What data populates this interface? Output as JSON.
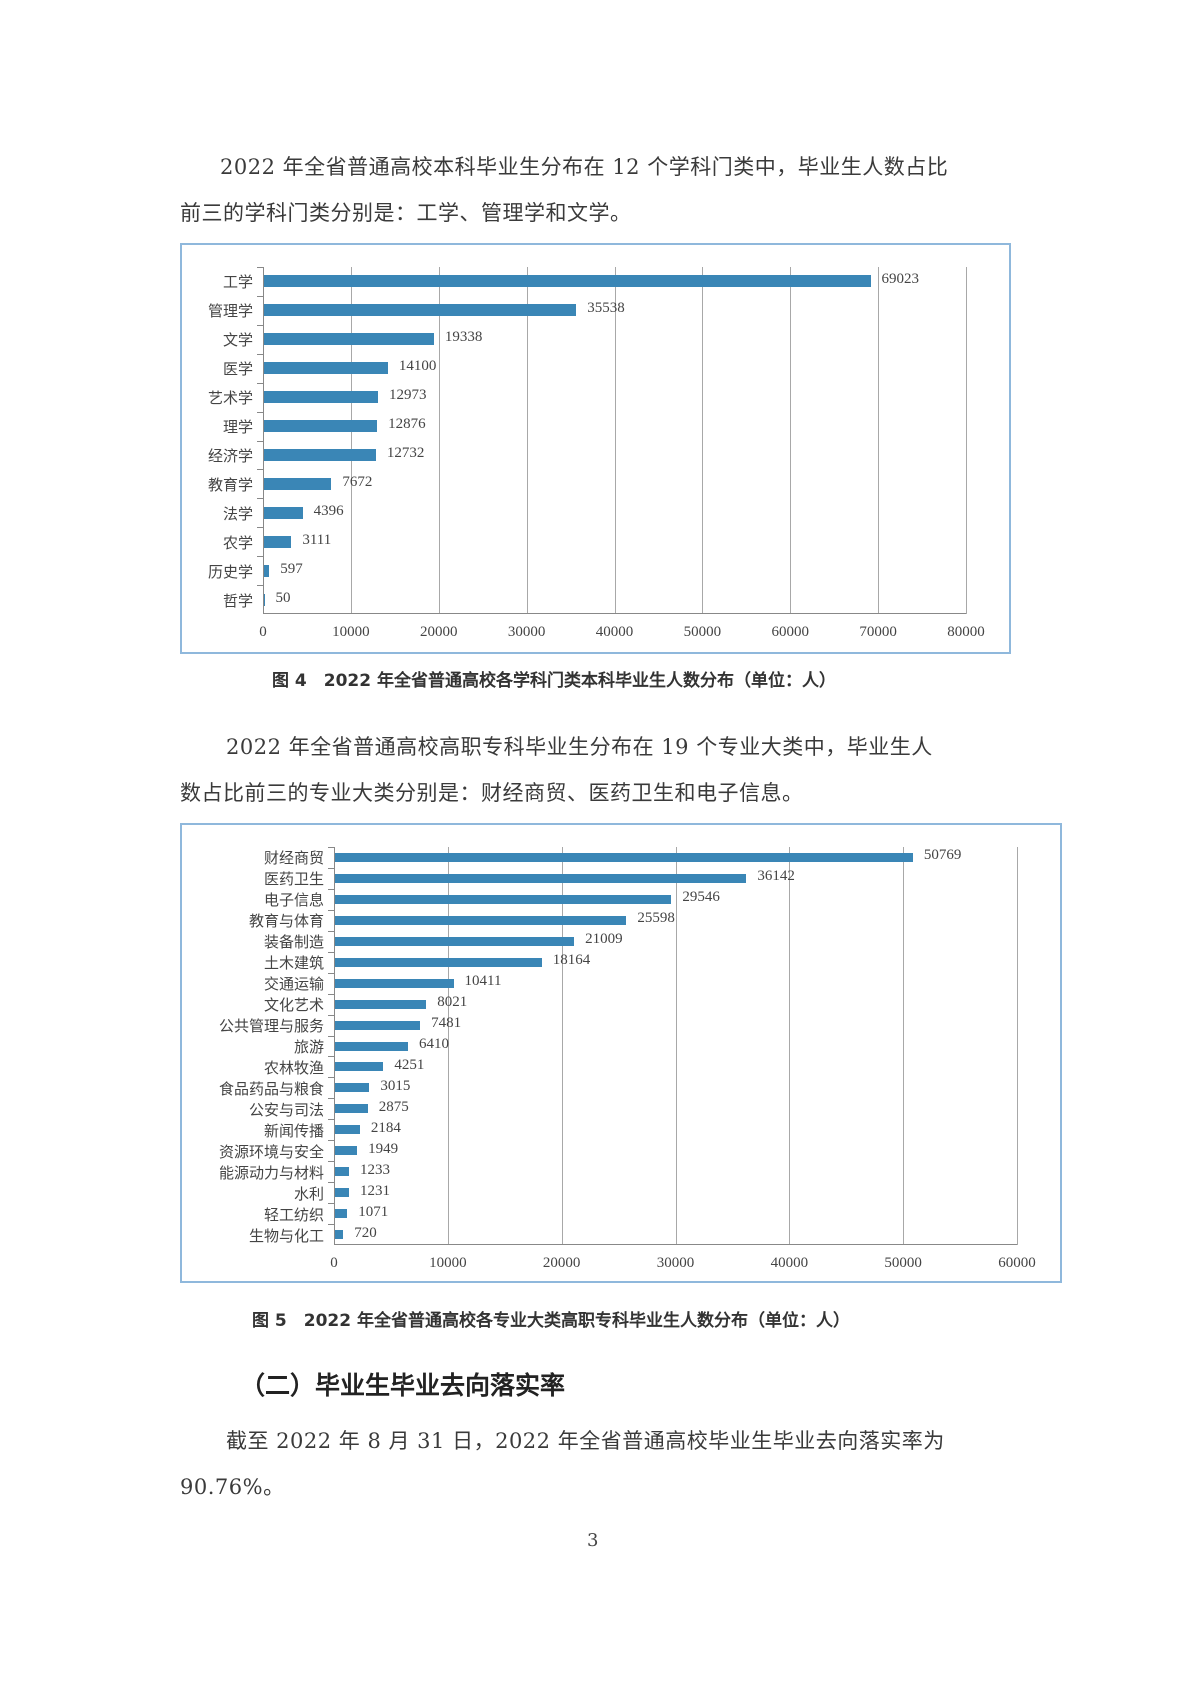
{
  "paragraphs": {
    "p1_line1": "2022 年全省普通高校本科毕业生分布在 12 个学科门类中，毕业生人数占比",
    "p1_line2": "前三的学科门类分别是：工学、管理学和文学。",
    "p2_line1": "2022 年全省普通高校高职专科毕业生分布在 19 个专业大类中，毕业生人",
    "p2_line2": "数占比前三的专业大类分别是：财经商贸、医药卫生和电子信息。",
    "p3_line1": "截至 2022 年 8 月 31 日，2022 年全省普通高校毕业生毕业去向落实率为",
    "p3_line2": "90.76%。"
  },
  "figure4_caption": "图 4　2022 年全省普通高校各学科门类本科毕业生人数分布（单位：人）",
  "figure5_caption": "图 5　2022 年全省普通高校各专业大类高职专科毕业生人数分布（单位：人）",
  "section_heading": "（二）毕业生毕业去向落实率",
  "page_number": "3",
  "colors": {
    "bar": "#3a86b6",
    "chart_border": "#8fb8dc"
  },
  "chart_data": [
    {
      "type": "bar",
      "orientation": "horizontal",
      "title": "2022 年全省普通高校各学科门类本科毕业生人数分布（单位：人）",
      "categories": [
        "工学",
        "管理学",
        "文学",
        "医学",
        "艺术学",
        "理学",
        "经济学",
        "教育学",
        "法学",
        "农学",
        "历史学",
        "哲学"
      ],
      "values": [
        69023,
        35538,
        19338,
        14100,
        12973,
        12876,
        12732,
        7672,
        4396,
        3111,
        597,
        50
      ],
      "xlim": [
        0,
        80000
      ],
      "xticks": [
        "0",
        "10000",
        "20000",
        "30000",
        "40000",
        "50000",
        "60000",
        "70000",
        "80000"
      ],
      "grid": true,
      "legend": null
    },
    {
      "type": "bar",
      "orientation": "horizontal",
      "title": "2022 年全省普通高校各专业大类高职专科毕业生人数分布（单位：人）",
      "categories": [
        "财经商贸",
        "医药卫生",
        "电子信息",
        "教育与体育",
        "装备制造",
        "土木建筑",
        "交通运输",
        "文化艺术",
        "公共管理与服务",
        "旅游",
        "农林牧渔",
        "食品药品与粮食",
        "公安与司法",
        "新闻传播",
        "资源环境与安全",
        "能源动力与材料",
        "水利",
        "轻工纺织",
        "生物与化工"
      ],
      "values": [
        50769,
        36142,
        29546,
        25598,
        21009,
        18164,
        10411,
        8021,
        7481,
        6410,
        4251,
        3015,
        2875,
        2184,
        1949,
        1233,
        1231,
        1071,
        720
      ],
      "xlim": [
        0,
        60000
      ],
      "xticks": [
        "0",
        "10000",
        "20000",
        "30000",
        "40000",
        "50000",
        "60000"
      ],
      "grid": true,
      "legend": null
    }
  ]
}
